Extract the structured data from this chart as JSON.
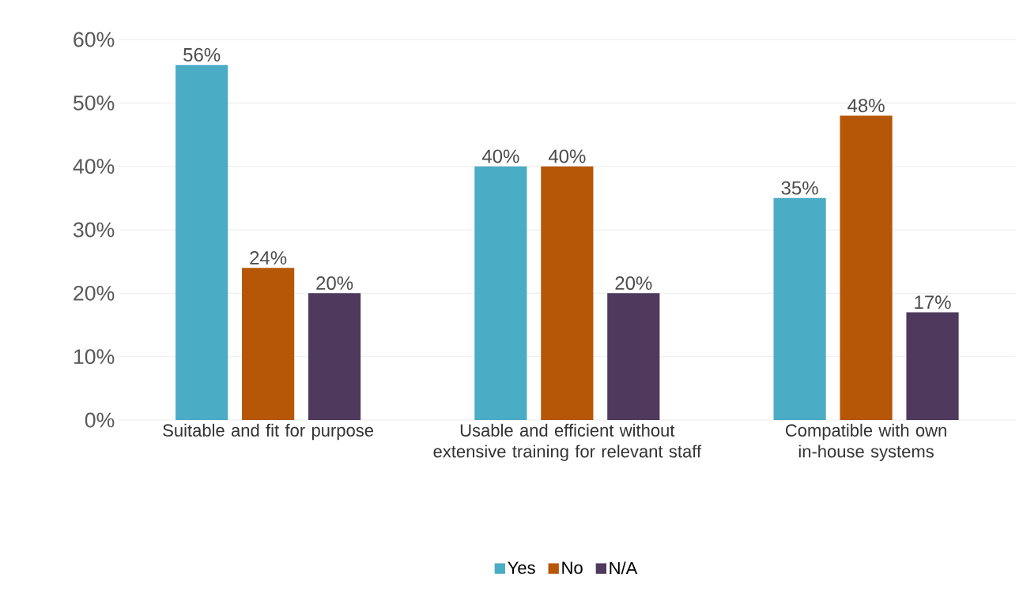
{
  "chart_data": {
    "type": "bar",
    "categories": [
      "Suitable and fit for purpose",
      "Usable and efficient without extensive training for relevant staff",
      "Compatible with own in-house systems"
    ],
    "series": [
      {
        "name": "Yes",
        "color": "#4bacc6",
        "values": [
          56,
          40,
          35
        ],
        "value_labels": [
          "56%",
          "40%",
          "35%"
        ]
      },
      {
        "name": "No",
        "color": "#b65708",
        "values": [
          24,
          40,
          48
        ],
        "value_labels": [
          "24%",
          "40%",
          "48%"
        ]
      },
      {
        "name": "N/A",
        "color": "#4f3a5e",
        "values": [
          20,
          20,
          17
        ],
        "value_labels": [
          "20%",
          "20%",
          "17%"
        ]
      }
    ],
    "ylim": [
      0,
      60
    ],
    "yticks": [
      {
        "value": 0,
        "label": "0%"
      },
      {
        "value": 10,
        "label": "10%"
      },
      {
        "value": 20,
        "label": "20%"
      },
      {
        "value": 30,
        "label": "30%"
      },
      {
        "value": 40,
        "label": "40%"
      },
      {
        "value": 50,
        "label": "50%"
      },
      {
        "value": 60,
        "label": "60%"
      }
    ],
    "grid": "y",
    "legend": "bottom"
  }
}
